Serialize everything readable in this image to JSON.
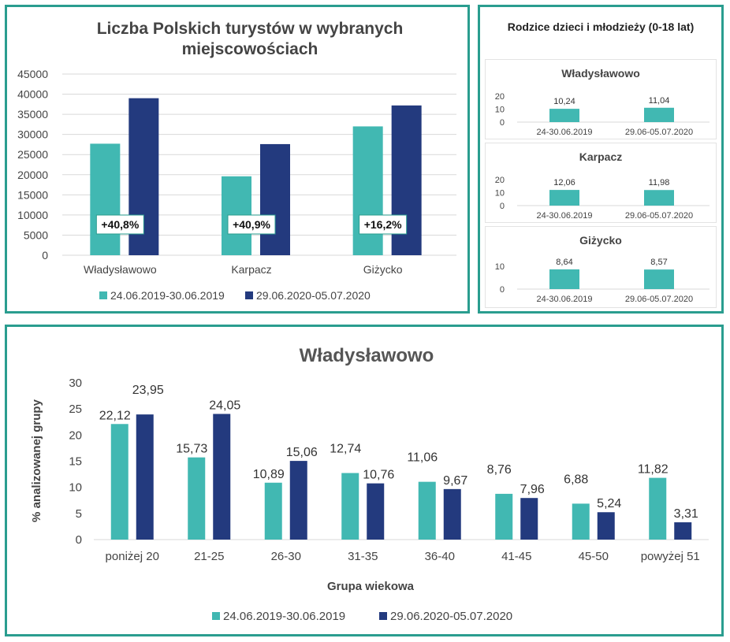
{
  "colors": {
    "series1": "#41b8b2",
    "series2": "#233a7e",
    "frame": "#2a9d8f",
    "grid": "#d9d9d9"
  },
  "top_left": {
    "chart_data": {
      "type": "bar",
      "title_line1": "Liczba Polskich turystów w wybranych",
      "title_line2": "miejscowościach",
      "categories": [
        "Władysławowo",
        "Karpacz",
        "Giżycko"
      ],
      "series": [
        {
          "name": "24.06.2019-30.06.2019",
          "values": [
            27700,
            19600,
            32000
          ]
        },
        {
          "name": "29.06.2020-05.07.2020",
          "values": [
            39000,
            27600,
            37200
          ]
        }
      ],
      "annotations": [
        "+40,8%",
        "+40,9%",
        "+16,2%"
      ],
      "yticks": [
        "45000",
        "40000",
        "35000",
        "30000",
        "25000",
        "20000",
        "15000",
        "10000",
        "5000",
        "0"
      ],
      "ylim": [
        0,
        45000
      ]
    }
  },
  "top_right": {
    "title": "Rodzice dzieci i młodzieży (0-18 lat)",
    "charts": [
      {
        "type": "bar",
        "title": "Władysławowo",
        "categories": [
          "24-30.06.2019",
          "29.06-05.07.2020"
        ],
        "values": [
          10.24,
          11.04
        ],
        "labels": [
          "10,24",
          "11,04"
        ],
        "yticks": [
          "20",
          "10",
          "0"
        ],
        "ylim": [
          0,
          20
        ]
      },
      {
        "type": "bar",
        "title": "Karpacz",
        "categories": [
          "24-30.06.2019",
          "29.06-05.07.2020"
        ],
        "values": [
          12.06,
          11.98
        ],
        "labels": [
          "12,06",
          "11,98"
        ],
        "yticks": [
          "20",
          "10",
          "0"
        ],
        "ylim": [
          0,
          20
        ]
      },
      {
        "type": "bar",
        "title": "Giżycko",
        "categories": [
          "24-30.06.2019",
          "29.06-05.07.2020"
        ],
        "values": [
          8.64,
          8.57
        ],
        "labels": [
          "8,64",
          "8,57"
        ],
        "yticks": [
          "10",
          "0"
        ],
        "ylim": [
          0,
          10
        ]
      }
    ]
  },
  "bottom": {
    "chart_data": {
      "type": "bar",
      "title": "Władysławowo",
      "ylabel": "% analizowanej grupy",
      "xlabel": "Grupa wiekowa",
      "categories": [
        "poniżej 20",
        "21-25",
        "26-30",
        "31-35",
        "36-40",
        "41-45",
        "45-50",
        "powyżej 51"
      ],
      "series": [
        {
          "name": "24.06.2019-30.06.2019",
          "values": [
            22.12,
            15.73,
            10.89,
            12.74,
            11.06,
            8.76,
            6.88,
            11.82
          ],
          "labels": [
            "22,12",
            "15,73",
            "10,89",
            "12,74",
            "11,06",
            "8,76",
            "6,88",
            "11,82"
          ]
        },
        {
          "name": "29.06.2020-05.07.2020",
          "values": [
            23.95,
            24.05,
            15.06,
            10.76,
            9.67,
            7.96,
            5.24,
            3.31
          ],
          "labels": [
            "23,95",
            "24,05",
            "15,06",
            "10,76",
            "9,67",
            "7,96",
            "5,24",
            "3,31"
          ]
        }
      ],
      "yticks": [
        "30",
        "25",
        "20",
        "15",
        "10",
        "5",
        "0"
      ],
      "ylim": [
        0,
        30
      ]
    }
  }
}
